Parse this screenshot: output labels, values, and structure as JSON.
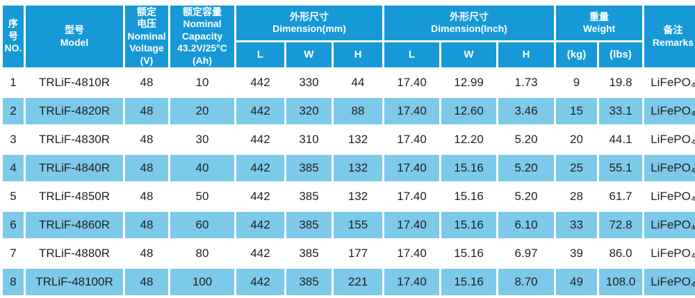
{
  "colors": {
    "header_blue": "#1699D6",
    "row_blue": "#7DC9EA",
    "row_white": "#FFFFFF",
    "text_dark": "#1F1F1F",
    "header_text": "#FFFFFF"
  },
  "table": {
    "header": {
      "no": "序\n号\nNO.",
      "model": "型号\nModel",
      "voltage": "额定\n电压\nNominal\nVoltage\n(V)",
      "capacity": "额定容量\nNominal\nCapacity\n43.2V/25°C\n(Ah)",
      "dim_mm": "外形尺寸\nDimension(mm)",
      "dim_inch": "外形尺寸\nDimension(Inch)",
      "weight": "重量\nWeight",
      "remarks": "备注\nRemarks",
      "sub_l": "L",
      "sub_w": "W",
      "sub_h": "H",
      "sub_kg": "(kg)",
      "sub_lbs": "(lbs)"
    },
    "rows": [
      [
        "1",
        "TRLiF-4810R",
        "48",
        "10",
        "442",
        "330",
        "44",
        "17.40",
        "12.99",
        "1.73",
        "9",
        "19.8",
        "LiFePO₄"
      ],
      [
        "2",
        "TRLiF-4820R",
        "48",
        "20",
        "442",
        "320",
        "88",
        "17.40",
        "12.60",
        "3.46",
        "15",
        "33.1",
        "LiFePO₄"
      ],
      [
        "3",
        "TRLiF-4830R",
        "48",
        "30",
        "442",
        "310",
        "132",
        "17.40",
        "12.20",
        "5.20",
        "20",
        "44.1",
        "LiFePO₄"
      ],
      [
        "4",
        "TRLiF-4840R",
        "48",
        "40",
        "442",
        "385",
        "132",
        "17.40",
        "15.16",
        "5.20",
        "25",
        "55.1",
        "LiFePO₄"
      ],
      [
        "5",
        "TRLiF-4850R",
        "48",
        "50",
        "442",
        "385",
        "132",
        "17.40",
        "15.16",
        "5.20",
        "28",
        "61.7",
        "LiFePO₄"
      ],
      [
        "6",
        "TRLiF-4860R",
        "48",
        "60",
        "442",
        "385",
        "155",
        "17.40",
        "15.16",
        "6.10",
        "33",
        "72.8",
        "LiFePO₄"
      ],
      [
        "7",
        "TRLiF-4880R",
        "48",
        "80",
        "442",
        "385",
        "177",
        "17.40",
        "15.16",
        "6.97",
        "39",
        "86.0",
        "LiFePO₄"
      ],
      [
        "8",
        "TRLiF-48100R",
        "48",
        "100",
        "442",
        "385",
        "221",
        "17.40",
        "15.16",
        "8.70",
        "49",
        "108.0",
        "LiFePO₄"
      ]
    ]
  },
  "chart_data": {
    "type": "table",
    "title": "LiFePO₄ battery specification table",
    "columns": [
      "序号 NO.",
      "型号 Model",
      "额定电压 Nominal Voltage (V)",
      "额定容量 Nominal Capacity 43.2V/25°C (Ah)",
      "外形尺寸 Dimension(mm) L",
      "外形尺寸 Dimension(mm) W",
      "外形尺寸 Dimension(mm) H",
      "外形尺寸 Dimension(Inch) L",
      "外形尺寸 Dimension(Inch) W",
      "外形尺寸 Dimension(Inch) H",
      "重量 Weight (kg)",
      "重量 Weight (lbs)",
      "备注 Remarks"
    ],
    "rows": [
      [
        "1",
        "TRLiF-4810R",
        48,
        10,
        442,
        330,
        44,
        17.4,
        12.99,
        1.73,
        9,
        19.8,
        "LiFePO₄"
      ],
      [
        "2",
        "TRLiF-4820R",
        48,
        20,
        442,
        320,
        88,
        17.4,
        12.6,
        3.46,
        15,
        33.1,
        "LiFePO₄"
      ],
      [
        "3",
        "TRLiF-4830R",
        48,
        30,
        442,
        310,
        132,
        17.4,
        12.2,
        5.2,
        20,
        44.1,
        "LiFePO₄"
      ],
      [
        "4",
        "TRLiF-4840R",
        48,
        40,
        442,
        385,
        132,
        17.4,
        15.16,
        5.2,
        25,
        55.1,
        "LiFePO₄"
      ],
      [
        "5",
        "TRLiF-4850R",
        48,
        50,
        442,
        385,
        132,
        17.4,
        15.16,
        5.2,
        28,
        61.7,
        "LiFePO₄"
      ],
      [
        "6",
        "TRLiF-4860R",
        48,
        60,
        442,
        385,
        155,
        17.4,
        15.16,
        6.1,
        33,
        72.8,
        "LiFePO₄"
      ],
      [
        "7",
        "TRLiF-4880R",
        48,
        80,
        442,
        385,
        177,
        17.4,
        15.16,
        6.97,
        39,
        86.0,
        "LiFePO₄"
      ],
      [
        "8",
        "TRLiF-48100R",
        48,
        100,
        442,
        385,
        221,
        17.4,
        15.16,
        8.7,
        49,
        108.0,
        "LiFePO₄"
      ]
    ]
  }
}
